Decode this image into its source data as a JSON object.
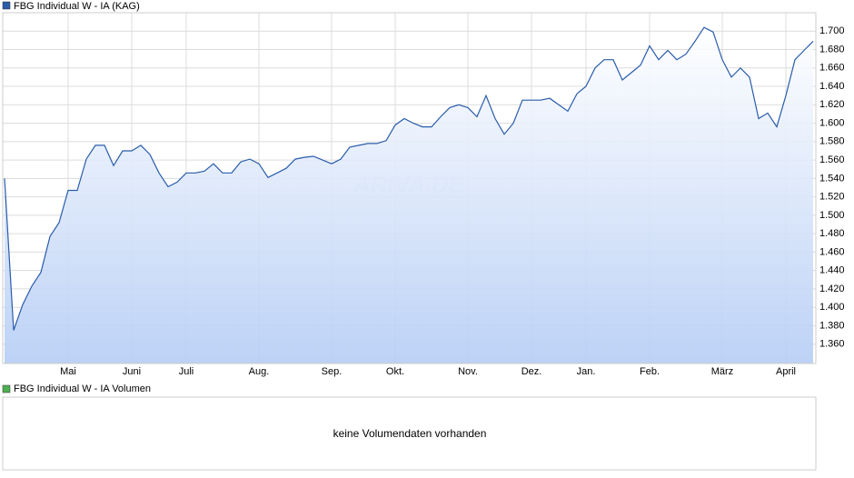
{
  "chart_data": [
    {
      "type": "line",
      "series": [
        {
          "name": "FBG Individual W - IA (KAG)",
          "color": "#2a5caa",
          "values": [
            1540,
            1375,
            1403,
            1423,
            1438,
            1477,
            1492,
            1527,
            1527,
            1561,
            1576,
            1576,
            1554,
            1570,
            1570,
            1576,
            1566,
            1546,
            1531,
            1536,
            1546,
            1546,
            1548,
            1556,
            1546,
            1546,
            1558,
            1561,
            1556,
            1541,
            1546,
            1551,
            1561,
            1563,
            1564,
            1560,
            1556,
            1561,
            1574,
            1576,
            1578,
            1578,
            1581,
            1598,
            1605,
            1600,
            1596,
            1596,
            1607,
            1617,
            1620,
            1617,
            1607,
            1630,
            1605,
            1588,
            1600,
            1625,
            1625,
            1625,
            1627,
            1620,
            1613,
            1632,
            1640,
            1660,
            1669,
            1669,
            1647,
            1655,
            1663,
            1684,
            1669,
            1679,
            1669,
            1675,
            1689,
            1704,
            1699,
            1669,
            1650,
            1660,
            1650,
            1605,
            1611,
            1596,
            1630,
            1669,
            1679,
            1689
          ]
        }
      ],
      "categories": [
        null,
        null,
        null,
        null,
        null,
        null,
        null,
        "Mai",
        null,
        null,
        null,
        null,
        null,
        null,
        "Juni",
        null,
        null,
        null,
        null,
        null,
        "Juli",
        null,
        null,
        null,
        null,
        null,
        null,
        null,
        "Aug.",
        null,
        null,
        null,
        null,
        null,
        null,
        null,
        "Sep.",
        null,
        null,
        null,
        null,
        null,
        null,
        "Okt.",
        null,
        null,
        null,
        null,
        null,
        null,
        null,
        "Nov.",
        null,
        null,
        null,
        null,
        null,
        null,
        "Dez.",
        null,
        null,
        null,
        null,
        null,
        "Jan.",
        null,
        null,
        null,
        null,
        null,
        null,
        "Feb.",
        null,
        null,
        null,
        null,
        null,
        null,
        null,
        "März",
        null,
        null,
        null,
        null,
        null,
        null,
        "April",
        null,
        null,
        null
      ],
      "ylim": [
        1339,
        1720
      ],
      "yticks": [
        {
          "value": 1360,
          "label": "1.360"
        },
        {
          "value": 1380,
          "label": "1.380"
        },
        {
          "value": 1400,
          "label": "1.400"
        },
        {
          "value": 1420,
          "label": "1.420"
        },
        {
          "value": 1440,
          "label": "1.440"
        },
        {
          "value": 1460,
          "label": "1.460"
        },
        {
          "value": 1480,
          "label": "1.480"
        },
        {
          "value": 1500,
          "label": "1.500"
        },
        {
          "value": 1520,
          "label": "1.520"
        },
        {
          "value": 1540,
          "label": "1.540"
        },
        {
          "value": 1560,
          "label": "1.560"
        },
        {
          "value": 1580,
          "label": "1.580"
        },
        {
          "value": 1600,
          "label": "1.600"
        },
        {
          "value": 1620,
          "label": "1.620"
        },
        {
          "value": 1640,
          "label": "1.640"
        },
        {
          "value": 1660,
          "label": "1.660"
        },
        {
          "value": 1680,
          "label": "1.680"
        },
        {
          "value": 1700,
          "label": "1.700"
        }
      ],
      "grid": true,
      "watermark": "ARIVA.DE"
    },
    {
      "type": "bar",
      "series": [
        {
          "name": "FBG Individual W - IA Volumen",
          "color": "#4caf50",
          "values": []
        }
      ],
      "message": "keine Volumendaten vorhanden"
    }
  ]
}
